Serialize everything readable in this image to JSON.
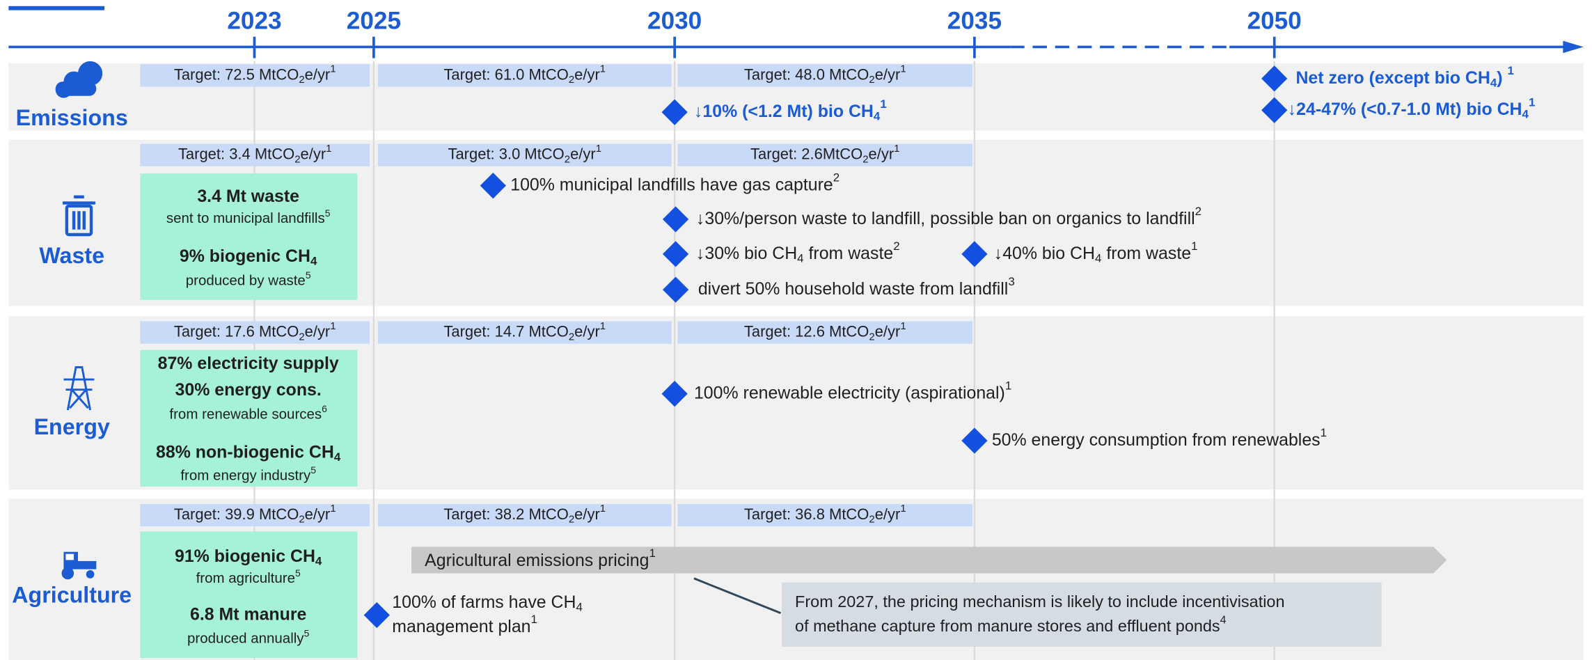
{
  "header": {
    "years": [
      "2023",
      "2025",
      "2030",
      "2035",
      "2050"
    ]
  },
  "rows": [
    {
      "label": "Emissions",
      "targets": [
        [
          {
            "text": "Target: 72.5 MtCO"
          },
          {
            "sub": "2"
          },
          {
            "text": "e/yr"
          },
          {
            "sup": "1"
          }
        ],
        [
          {
            "text": "Target: 61.0 MtCO"
          },
          {
            "sub": "2"
          },
          {
            "text": "e/yr"
          },
          {
            "sup": "1"
          }
        ],
        [
          {
            "text": "Target: 48.0 MtCO"
          },
          {
            "sub": "2"
          },
          {
            "text": "e/yr"
          },
          {
            "sup": "1"
          }
        ]
      ],
      "facts": [],
      "milestones": [
        [
          [
            {
              "text": "↓10% (<1.2 Mt) bio CH"
            },
            {
              "sub": "4"
            },
            {
              "sup": "1"
            }
          ]
        ],
        [
          [
            {
              "text": "Net zero (except bio CH"
            },
            {
              "sub": "4"
            },
            {
              "text": ") "
            },
            {
              "sup": "1"
            }
          ]
        ],
        [
          [
            {
              "text": "↓24-47% (<0.7-1.0 Mt) bio CH"
            },
            {
              "sub": "4"
            },
            {
              "sup": "1"
            }
          ]
        ]
      ]
    },
    {
      "label": "Waste",
      "targets": [
        [
          {
            "text": "Target: 3.4 MtCO"
          },
          {
            "sub": "2"
          },
          {
            "text": "e/yr"
          },
          {
            "sup": "1"
          }
        ],
        [
          {
            "text": "Target: 3.0 MtCO"
          },
          {
            "sub": "2"
          },
          {
            "text": "e/yr"
          },
          {
            "sup": "1"
          }
        ],
        [
          {
            "text": "Target: 2.6MtCO"
          },
          {
            "sub": "2"
          },
          {
            "text": "e/yr"
          },
          {
            "sup": "1"
          }
        ]
      ],
      "facts": [
        {
          "title": [
            [
              {
                "text": "3.4 Mt waste"
              }
            ]
          ],
          "detail": [
            {
              "text": "sent to municipal landfills"
            },
            {
              "sup": "5"
            }
          ]
        },
        {
          "title": [
            [
              {
                "text": "9% biogenic CH"
              },
              {
                "sub": "4"
              }
            ]
          ],
          "detail": [
            {
              "text": "produced by waste"
            },
            {
              "sup": "5"
            }
          ]
        }
      ],
      "milestones": [
        [
          [
            {
              "text": "100% municipal landfills have gas capture"
            },
            {
              "sup": "2"
            }
          ]
        ],
        [
          [
            {
              "text": "↓30%/person waste to landfill, possible ban on organics to landfill"
            },
            {
              "sup": "2"
            }
          ]
        ],
        [
          [
            {
              "text": "↓30% bio CH"
            },
            {
              "sub": "4"
            },
            {
              "text": " from waste"
            },
            {
              "sup": "2"
            }
          ]
        ],
        [
          [
            {
              "text": "↓40% bio CH"
            },
            {
              "sub": "4"
            },
            {
              "text": " from waste"
            },
            {
              "sup": "1"
            }
          ]
        ],
        [
          [
            {
              "text": "divert 50% household waste from landfill"
            },
            {
              "sup": "3"
            }
          ]
        ]
      ]
    },
    {
      "label": "Energy",
      "targets": [
        [
          {
            "text": "Target: 17.6 MtCO"
          },
          {
            "sub": "2"
          },
          {
            "text": "e/yr"
          },
          {
            "sup": "1"
          }
        ],
        [
          {
            "text": "Target: 14.7 MtCO"
          },
          {
            "sub": "2"
          },
          {
            "text": "e/yr"
          },
          {
            "sup": "1"
          }
        ],
        [
          {
            "text": "Target: 12.6 MtCO"
          },
          {
            "sub": "2"
          },
          {
            "text": "e/yr"
          },
          {
            "sup": "1"
          }
        ]
      ],
      "facts": [
        {
          "title": [
            [
              {
                "text": "87% electricity supply"
              }
            ],
            [
              {
                "text": "30% energy cons."
              }
            ]
          ],
          "detail": [
            {
              "text": "from renewable sources"
            },
            {
              "sup": "6"
            }
          ]
        },
        {
          "title": [
            [
              {
                "text": "88% non-biogenic CH"
              },
              {
                "sub": "4"
              }
            ]
          ],
          "detail": [
            {
              "text": "from energy industry"
            },
            {
              "sup": "5"
            }
          ]
        }
      ],
      "milestones": [
        [
          [
            {
              "text": "100% renewable electricity (aspirational)"
            },
            {
              "sup": "1"
            }
          ]
        ],
        [
          [
            {
              "text": "50% energy consumption from renewables"
            },
            {
              "sup": "1"
            }
          ]
        ]
      ]
    },
    {
      "label": "Agriculture",
      "targets": [
        [
          {
            "text": "Target: 39.9 MtCO"
          },
          {
            "sub": "2"
          },
          {
            "text": "e/yr"
          },
          {
            "sup": "1"
          }
        ],
        [
          {
            "text": "Target: 38.2 MtCO"
          },
          {
            "sub": "2"
          },
          {
            "text": "e/yr"
          },
          {
            "sup": "1"
          }
        ],
        [
          {
            "text": "Target: 36.8 MtCO"
          },
          {
            "sub": "2"
          },
          {
            "text": "e/yr"
          },
          {
            "sup": "1"
          }
        ]
      ],
      "facts": [
        {
          "title": [
            [
              {
                "text": "91% biogenic CH"
              },
              {
                "sub": "4"
              }
            ]
          ],
          "detail": [
            {
              "text": "from agriculture"
            },
            {
              "sup": "5"
            }
          ]
        },
        {
          "title": [
            [
              {
                "text": "6.8 Mt manure"
              }
            ]
          ],
          "detail": [
            {
              "text": "produced annually"
            },
            {
              "sup": "5"
            }
          ]
        }
      ],
      "milestones": [
        [
          [
            {
              "text": "100% of farms have CH"
            },
            {
              "sub": "4"
            }
          ],
          [
            {
              "text": "management plan"
            },
            {
              "sup": "1"
            }
          ]
        ]
      ],
      "pricing": {
        "label": [
          {
            "text": "Agricultural emissions pricing"
          },
          {
            "sup": "1"
          }
        ],
        "note": [
          [
            {
              "text": "From 2027, the pricing mechanism is likely to include incentivisation"
            }
          ],
          [
            {
              "text": "of methane capture from manure stores and effluent ponds"
            },
            {
              "sup": "4"
            }
          ]
        ]
      }
    }
  ]
}
